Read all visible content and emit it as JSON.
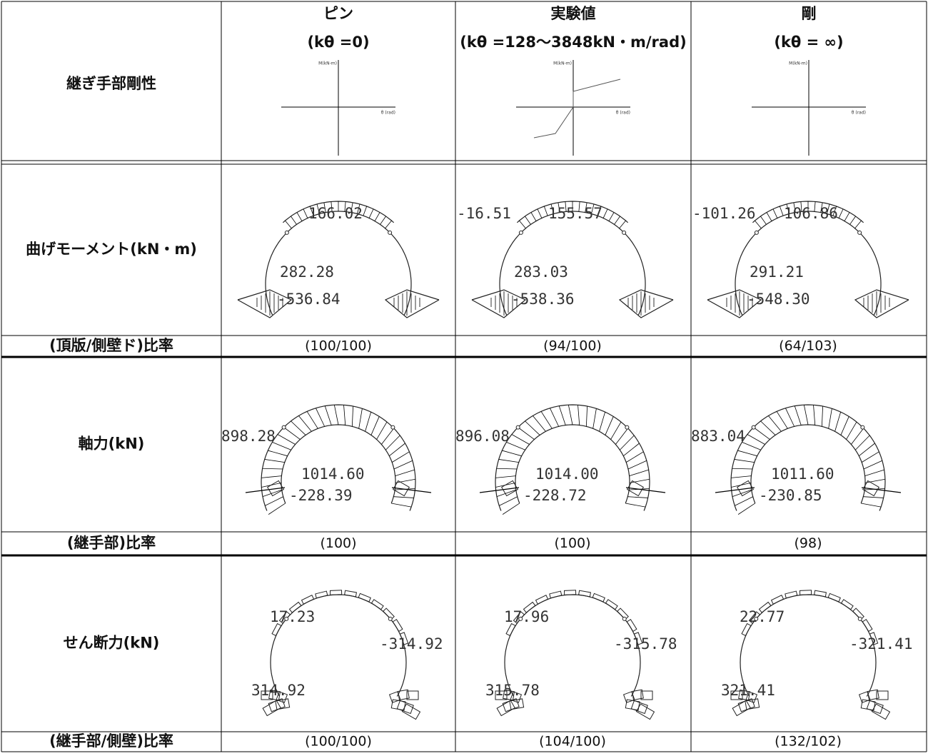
{
  "header": {
    "row_label": "継ぎ手部剛性",
    "columns": [
      {
        "name": "ピン",
        "condition": "(kθ =0)",
        "graph_y_label": "M(kN-m)",
        "graph_x_label": "θ (rad)"
      },
      {
        "name": "実験値",
        "condition": "(kθ =128～3848kN・m/rad)",
        "graph_y_label": "M(kN-m)",
        "graph_x_label": "θ (rad)"
      },
      {
        "name": "剛",
        "condition": "(kθ = ∞)",
        "graph_y_label": "M(kN-m)",
        "graph_x_label": "θ (rad)"
      }
    ]
  },
  "rows": [
    {
      "kind": "moment",
      "label": "曲げモーメント(kN・m)",
      "diagram_labels": [
        [
          "166.02",
          "282.28",
          "-536.84"
        ],
        [
          "-16.51",
          "155.57",
          "283.03",
          "-538.36"
        ],
        [
          "-101.26",
          "106.86",
          "291.21",
          "-548.30"
        ]
      ]
    },
    {
      "kind": "ratio",
      "label": "(頂版/側壁ド)比率",
      "values": [
        "(100/100)",
        "(94/100)",
        "(64/103)"
      ]
    },
    {
      "kind": "axial",
      "label": "軸力(kN)",
      "diagram_labels": [
        [
          "898.28",
          "1014.60",
          "-228.39"
        ],
        [
          "896.08",
          "1014.00",
          "-228.72"
        ],
        [
          "883.04",
          "1011.60",
          "-230.85"
        ]
      ]
    },
    {
      "kind": "ratio",
      "label": "(継手部)比率",
      "values": [
        "(100)",
        "(100)",
        "(98)"
      ]
    },
    {
      "kind": "shear",
      "label": "せん断力(kN)",
      "diagram_labels": [
        [
          "17.23",
          "-314.92",
          "314.92"
        ],
        [
          "17.96",
          "-315.78",
          "315.78"
        ],
        [
          "22.77",
          "-321.41",
          "321.41"
        ]
      ]
    },
    {
      "kind": "ratio",
      "label": "(継手部/側壁)比率",
      "values": [
        "(100/100)",
        "(104/100)",
        "(132/102)"
      ]
    }
  ]
}
